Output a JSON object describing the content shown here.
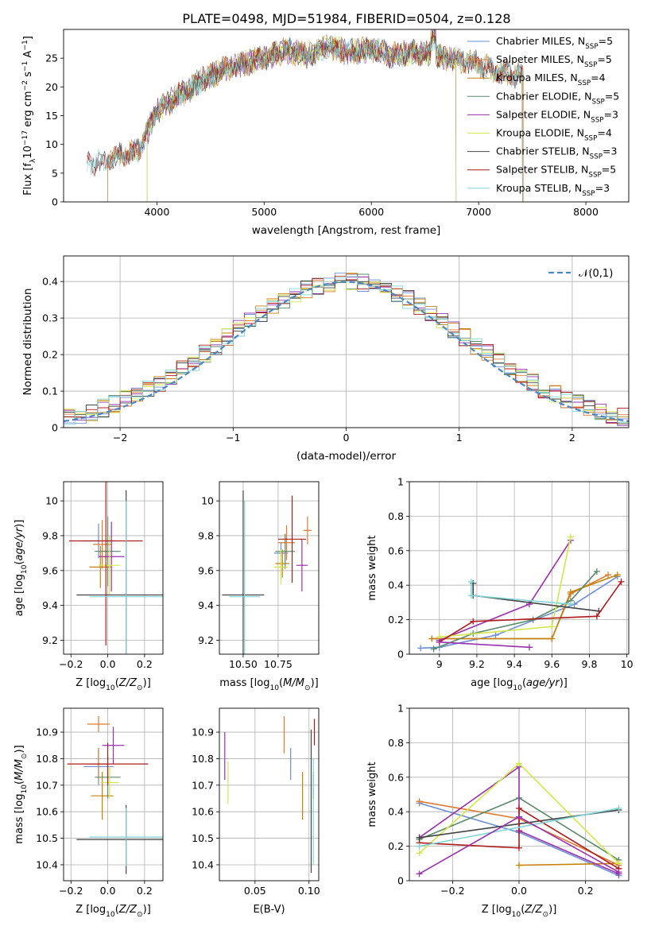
{
  "figure_title": "PLATE=0498, MJD=51984, FIBERID=0504, z=0.128",
  "models": [
    {
      "name": "Chabrier MILES",
      "nssp": "5",
      "color": "#6b8fd6"
    },
    {
      "name": "Salpeter MILES",
      "nssp": "5",
      "color": "#e07a2e"
    },
    {
      "name": "Kroupa MILES",
      "nssp": "4",
      "color": "#c4820a"
    },
    {
      "name": "Chabrier ELODIE",
      "nssp": "5",
      "color": "#5a8a6a"
    },
    {
      "name": "Salpeter ELODIE",
      "nssp": "3",
      "color": "#9b30b0"
    },
    {
      "name": "Kroupa ELODIE",
      "nssp": "4",
      "color": "#d2e84a"
    },
    {
      "name": "Chabrier STELIB",
      "nssp": "3",
      "color": "#444444"
    },
    {
      "name": "Salpeter STELIB",
      "nssp": "5",
      "color": "#b01c1c"
    },
    {
      "name": "Kroupa STELIB",
      "nssp": "3",
      "color": "#7fd6d6"
    }
  ],
  "chart_data": [
    {
      "id": "spectrum",
      "type": "line",
      "xlabel": "wavelength [Angstrom, rest frame]",
      "ylabel": "Flux [f_λ 10^-17 erg cm^-2 s^-1 A^-1]",
      "xlim": [
        3130,
        8400
      ],
      "ylim": [
        0,
        30
      ],
      "xticks": [
        4000,
        5000,
        6000,
        7000,
        8000
      ],
      "yticks": [
        0,
        5,
        10,
        15,
        20,
        25
      ],
      "legend_position": "top-right",
      "continuum": {
        "x": [
          3350,
          3500,
          3650,
          3800,
          3900,
          3950,
          4000,
          4100,
          4200,
          4300,
          4400,
          4600,
          4800,
          5000,
          5200,
          5400,
          5600,
          5800,
          6000,
          6200,
          6400,
          6600,
          6800,
          7000,
          7200,
          7400
        ],
        "y": [
          6.5,
          7.0,
          8.0,
          8.5,
          11.5,
          14.0,
          16.0,
          17.0,
          18.5,
          19.5,
          21.0,
          23.0,
          24.0,
          25.0,
          26.5,
          25.5,
          27.0,
          26.0,
          26.5,
          25.5,
          26.0,
          25.5,
          24.5,
          24.0,
          22.5,
          22.0
        ]
      },
      "segments": [
        {
          "model": "Chabrier MILES",
          "x": [
            3540,
            7410
          ]
        },
        {
          "model": "Salpeter MILES",
          "x": [
            3540,
            7420
          ]
        },
        {
          "model": "Kroupa MILES",
          "x": [
            3540,
            7410
          ]
        },
        {
          "model": "Chabrier ELODIE",
          "x": [
            3910,
            6790
          ]
        },
        {
          "model": "Salpeter ELODIE",
          "x": [
            3910,
            6790
          ]
        },
        {
          "model": "Kroupa ELODIE",
          "x": [
            3910,
            6790
          ]
        },
        {
          "model": "Chabrier STELIB",
          "x": [
            3350,
            7410
          ]
        },
        {
          "model": "Salpeter STELIB",
          "x": [
            3350,
            7410
          ]
        },
        {
          "model": "Kroupa STELIB",
          "x": [
            3350,
            7410
          ]
        }
      ]
    },
    {
      "id": "residuals",
      "type": "line",
      "xlabel": "(data-model)/error",
      "ylabel": "Normed distribution",
      "xlim": [
        -2.5,
        2.5
      ],
      "ylim": [
        0,
        0.47
      ],
      "xticks": [
        -2,
        -1,
        0,
        1,
        2
      ],
      "yticks": [
        0.0,
        0.1,
        0.2,
        0.3,
        0.4
      ],
      "grid": true,
      "legend_position": "top-right",
      "reference": {
        "name": "𝒩(0,1)",
        "mean": 0,
        "sigma": 1
      }
    },
    {
      "id": "age_vs_Z",
      "type": "errorbar",
      "xlabel": "Z [log10(Z/Z☉)]",
      "ylabel": "age [log10(age/yr)]",
      "xlim": [
        -0.24,
        0.3
      ],
      "ylim": [
        9.12,
        10.11
      ],
      "xticks": [
        -0.2,
        0.0,
        0.2
      ],
      "yticks": [
        9.2,
        9.4,
        9.6,
        9.8,
        10.0
      ],
      "points": [
        {
          "model": "Chabrier MILES",
          "x": -0.05,
          "xerr": 0.09,
          "y": 9.77,
          "yerr": 0.1
        },
        {
          "model": "Salpeter MILES",
          "x": -0.03,
          "xerr": 0.05,
          "y": 9.75,
          "yerr": 0.14
        },
        {
          "model": "Kroupa MILES",
          "x": -0.04,
          "xerr": 0.06,
          "y": 9.62,
          "yerr": 0.12
        },
        {
          "model": "Chabrier ELODIE",
          "x": 0.0,
          "xerr": 0.07,
          "y": 9.71,
          "yerr": 0.2
        },
        {
          "model": "Salpeter ELODIE",
          "x": 0.02,
          "xerr": 0.07,
          "y": 9.68,
          "yerr": 0.2
        },
        {
          "model": "Kroupa ELODIE",
          "x": 0.01,
          "xerr": 0.06,
          "y": 9.63,
          "yerr": 0.17
        },
        {
          "model": "Chabrier STELIB",
          "x": 0.1,
          "xerr": 0.27,
          "y": 9.46,
          "yerr": 0.6
        },
        {
          "model": "Salpeter STELIB",
          "x": -0.01,
          "xerr": 0.2,
          "y": 9.77,
          "yerr": 0.6
        },
        {
          "model": "Kroupa STELIB",
          "x": 0.1,
          "xerr": 0.2,
          "y": 9.45,
          "yerr": 0.55
        }
      ]
    },
    {
      "id": "age_vs_mass",
      "type": "errorbar",
      "xlabel": "mass [log10(M/M☉)]",
      "ylabel": "",
      "xlim": [
        10.33,
        11.04
      ],
      "ylim": [
        9.12,
        10.11
      ],
      "xticks": [
        10.5,
        10.75
      ],
      "yticks": [
        9.2,
        9.4,
        9.6,
        9.8,
        10.0
      ],
      "points": [
        {
          "model": "Chabrier MILES",
          "x": 10.77,
          "xerr": 0.05,
          "y": 9.7,
          "yerr": 0.06
        },
        {
          "model": "Salpeter MILES",
          "x": 10.81,
          "xerr": 0.06,
          "y": 9.76,
          "yerr": 0.1
        },
        {
          "model": "Kroupa MILES",
          "x": 10.78,
          "xerr": 0.05,
          "y": 9.64,
          "yerr": 0.08
        },
        {
          "model": "Chabrier ELODIE",
          "x": 10.8,
          "xerr": 0.07,
          "y": 9.71,
          "yerr": 0.1
        },
        {
          "model": "Salpeter ELODIE",
          "x": 10.92,
          "xerr": 0.04,
          "y": 9.63,
          "yerr": 0.15
        },
        {
          "model": "Kroupa ELODIE",
          "x": 10.77,
          "xerr": 0.05,
          "y": 9.62,
          "yerr": 0.1
        },
        {
          "model": "Chabrier STELIB",
          "x": 10.5,
          "xerr": 0.15,
          "y": 9.46,
          "yerr": 0.6
        },
        {
          "model": "Salpeter STELIB",
          "x": 10.85,
          "xerr": 0.1,
          "y": 9.78,
          "yerr": 0.25
        },
        {
          "model": "Kroupa STELIB",
          "x": 10.51,
          "xerr": 0.11,
          "y": 9.45,
          "yerr": 0.55
        },
        {
          "model": "Salpeter MILES",
          "x": 10.96,
          "xerr": 0.03,
          "y": 9.83,
          "yerr": 0.08
        }
      ]
    },
    {
      "id": "weight_vs_age",
      "type": "line",
      "xlabel": "age [log10(age/yr)]",
      "ylabel": "mass weight",
      "xlim": [
        8.84,
        10.01
      ],
      "ylim": [
        0,
        1
      ],
      "xticks": [
        9.0,
        9.2,
        9.4,
        9.6,
        9.8,
        10.0
      ],
      "yticks": [
        0.0,
        0.2,
        0.4,
        0.6,
        0.8,
        1.0
      ],
      "grid": true,
      "series": [
        {
          "model": "Chabrier MILES",
          "x": [
            8.9,
            9.0,
            9.3,
            9.72,
            9.95
          ],
          "y": [
            0.035,
            0.04,
            0.11,
            0.29,
            0.45
          ]
        },
        {
          "model": "Salpeter MILES",
          "x": [
            8.96,
            9.0,
            9.6,
            9.7,
            9.9
          ],
          "y": [
            0.09,
            0.09,
            0.09,
            0.35,
            0.46
          ]
        },
        {
          "model": "Kroupa MILES",
          "x": [
            8.96,
            9.6,
            9.7,
            9.95
          ],
          "y": [
            0.09,
            0.09,
            0.36,
            0.46
          ]
        },
        {
          "model": "Chabrier ELODIE",
          "x": [
            8.97,
            9.18,
            9.5,
            9.7,
            9.84
          ],
          "y": [
            0.03,
            0.12,
            0.2,
            0.31,
            0.48
          ]
        },
        {
          "model": "Salpeter ELODIE",
          "x": [
            9.0,
            9.48,
            9.7
          ],
          "y": [
            0.08,
            0.29,
            0.66
          ]
        },
        {
          "model": "Kroupa ELODIE",
          "x": [
            9.0,
            9.6,
            9.7
          ],
          "y": [
            0.1,
            0.16,
            0.68
          ]
        },
        {
          "model": "Chabrier STELIB",
          "x": [
            9.18,
            9.18,
            9.85
          ],
          "y": [
            0.41,
            0.34,
            0.25
          ]
        },
        {
          "model": "Salpeter STELIB",
          "x": [
            9.0,
            9.18,
            9.84,
            9.97
          ],
          "y": [
            0.07,
            0.19,
            0.22,
            0.42
          ]
        },
        {
          "model": "Kroupa STELIB",
          "x": [
            9.17,
            9.17,
            9.7
          ],
          "y": [
            0.42,
            0.34,
            0.29
          ]
        },
        {
          "model": "Salpeter ELODIE",
          "x": [
            9.0,
            9.48
          ],
          "y": [
            0.07,
            0.04
          ]
        }
      ]
    },
    {
      "id": "mass_vs_Z",
      "type": "errorbar",
      "xlabel": "Z [log10(Z/Z☉)]",
      "ylabel": "mass [log10(M/M☉)]",
      "xlim": [
        -0.24,
        0.3
      ],
      "ylim": [
        10.34,
        10.99
      ],
      "xticks": [
        -0.2,
        0.0,
        0.2
      ],
      "yticks": [
        10.4,
        10.5,
        10.6,
        10.7,
        10.8,
        10.9
      ],
      "points": [
        {
          "model": "Chabrier MILES",
          "x": -0.05,
          "xerr": 0.08,
          "y": 10.77,
          "yerr": 0.07
        },
        {
          "model": "Salpeter MILES",
          "x": -0.05,
          "xerr": 0.05,
          "y": 10.78,
          "yerr": 0.06
        },
        {
          "model": "Kroupa MILES",
          "x": -0.03,
          "xerr": 0.06,
          "y": 10.66,
          "yerr": 0.09
        },
        {
          "model": "Chabrier ELODIE",
          "x": 0.0,
          "xerr": 0.07,
          "y": 10.73,
          "yerr": 0.08
        },
        {
          "model": "Salpeter ELODIE",
          "x": 0.03,
          "xerr": 0.06,
          "y": 10.85,
          "yerr": 0.07
        },
        {
          "model": "Kroupa ELODIE",
          "x": 0.01,
          "xerr": 0.05,
          "y": 10.71,
          "yerr": 0.06
        },
        {
          "model": "Chabrier STELIB",
          "x": 0.1,
          "xerr": 0.27,
          "y": 10.495,
          "yerr": 0.13
        },
        {
          "model": "Salpeter STELIB",
          "x": 0.0,
          "xerr": 0.22,
          "y": 10.78,
          "yerr": 0.08
        },
        {
          "model": "Kroupa STELIB",
          "x": 0.1,
          "xerr": 0.2,
          "y": 10.505,
          "yerr": 0.11
        },
        {
          "model": "Salpeter MILES",
          "x": -0.05,
          "xerr": 0.06,
          "y": 10.93,
          "yerr": 0.03
        }
      ]
    },
    {
      "id": "mass_vs_ebv",
      "type": "errorbar",
      "xlabel": "E(B-V)",
      "ylabel": "",
      "xlim": [
        0.017,
        0.109
      ],
      "ylim": [
        10.34,
        10.99
      ],
      "xticks": [
        0.05,
        0.1
      ],
      "yticks": [
        10.4,
        10.5,
        10.6,
        10.7,
        10.8,
        10.9
      ],
      "points": [
        {
          "model": "Chabrier MILES",
          "x": 0.083,
          "xerr": 0,
          "y": 10.78,
          "yerr": 0.06
        },
        {
          "model": "Salpeter MILES",
          "x": 0.077,
          "xerr": 0,
          "y": 10.89,
          "yerr": 0.07
        },
        {
          "model": "Kroupa MILES",
          "x": 0.094,
          "xerr": 0,
          "y": 10.66,
          "yerr": 0.09
        },
        {
          "model": "Chabrier ELODIE",
          "x": 0.104,
          "xerr": 0,
          "y": 10.7,
          "yerr": 0.05
        },
        {
          "model": "Salpeter ELODIE",
          "x": 0.022,
          "xerr": 0,
          "y": 10.81,
          "yerr": 0.09
        },
        {
          "model": "Kroupa ELODIE",
          "x": 0.025,
          "xerr": 0,
          "y": 10.71,
          "yerr": 0.08
        },
        {
          "model": "Chabrier STELIB",
          "x": 0.102,
          "xerr": 0,
          "y": 10.64,
          "yerr": 0.27
        },
        {
          "model": "Salpeter STELIB",
          "x": 0.105,
          "xerr": 0,
          "y": 10.9,
          "yerr": 0.05
        },
        {
          "model": "Kroupa STELIB",
          "x": 0.104,
          "xerr": 0,
          "y": 10.6,
          "yerr": 0.2
        }
      ]
    },
    {
      "id": "weight_vs_Z",
      "type": "line",
      "xlabel": "Z [log10(Z/Z☉)]",
      "ylabel": "mass weight",
      "xlim": [
        -0.33,
        0.33
      ],
      "ylim": [
        0,
        1
      ],
      "xticks": [
        -0.2,
        0.0,
        0.2
      ],
      "yticks": [
        0.0,
        0.2,
        0.4,
        0.6,
        0.8,
        1.0
      ],
      "grid": true,
      "series": [
        {
          "model": "Chabrier MILES",
          "x": [
            -0.3,
            0.0,
            0.3
          ],
          "y": [
            0.45,
            0.28,
            0.03
          ]
        },
        {
          "model": "Salpeter MILES",
          "x": [
            -0.3,
            0.0,
            0.3
          ],
          "y": [
            0.46,
            0.36,
            0.09
          ]
        },
        {
          "model": "Kroupa MILES",
          "x": [
            0.0,
            0.3
          ],
          "y": [
            0.09,
            0.1
          ]
        },
        {
          "model": "Chabrier ELODIE",
          "x": [
            -0.3,
            0.0,
            0.3
          ],
          "y": [
            0.24,
            0.48,
            0.12
          ]
        },
        {
          "model": "Salpeter ELODIE",
          "x": [
            -0.3,
            0.0,
            0.0,
            0.3
          ],
          "y": [
            0.25,
            0.66,
            0.29,
            0.04
          ]
        },
        {
          "model": "Kroupa ELODIE",
          "x": [
            -0.3,
            0.0,
            0.3
          ],
          "y": [
            0.16,
            0.68,
            0.1
          ]
        },
        {
          "model": "Chabrier STELIB",
          "x": [
            -0.3,
            0.3
          ],
          "y": [
            0.25,
            0.41
          ]
        },
        {
          "model": "Salpeter STELIB",
          "x": [
            -0.3,
            0.0,
            0.0,
            0.3
          ],
          "y": [
            0.22,
            0.19,
            0.42,
            0.07
          ]
        },
        {
          "model": "Kroupa STELIB",
          "x": [
            -0.3,
            0.3
          ],
          "y": [
            0.2,
            0.42
          ]
        },
        {
          "model": "Salpeter ELODIE",
          "x": [
            -0.3,
            0.0,
            0.3
          ],
          "y": [
            0.04,
            0.37,
            0.05
          ]
        }
      ]
    }
  ]
}
